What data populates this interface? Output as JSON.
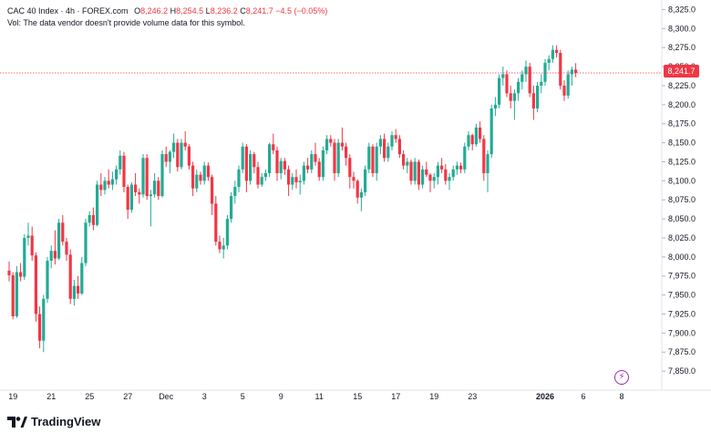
{
  "legend": {
    "title": "CAC 40 Index · 4h · FOREX.com",
    "o_label": "O",
    "o_value": "8,246.2",
    "h_label": "H",
    "h_value": "8,254.5",
    "l_label": "L",
    "l_value": "8,236.2",
    "c_label": "C",
    "c_value": "8,241.7",
    "change": "−4.5 (−0.05%)",
    "vol_note": "Vol: The data vendor doesn't provide volume data for this symbol."
  },
  "price_tag": "8,241.7",
  "brand": "TradingView",
  "colors": {
    "up": "#22ab94",
    "down": "#f23645",
    "accent": "#9c27b0"
  },
  "chart_data": {
    "type": "candlestick",
    "title": "CAC 40 Index · 4h · FOREX.com",
    "ylim": [
      7825,
      8337.5
    ],
    "y_ticks": [
      "8,325.0",
      "8,300.0",
      "8,275.0",
      "8,250.0",
      "8,225.0",
      "8,200.0",
      "8,175.0",
      "8,150.0",
      "8,125.0",
      "8,100.0",
      "8,075.0",
      "8,050.0",
      "8,025.0",
      "8,000.0",
      "7,975.0",
      "7,950.0",
      "7,925.0",
      "7,900.0",
      "7,875.0",
      "7,850.0"
    ],
    "y_tick_values": [
      8325,
      8300,
      8275,
      8250,
      8225,
      8200,
      8175,
      8150,
      8125,
      8100,
      8075,
      8050,
      8025,
      8000,
      7975,
      7950,
      7925,
      7900,
      7875,
      7850
    ],
    "x_labels": [
      {
        "label": "19",
        "index": 1,
        "bold": false
      },
      {
        "label": "21",
        "index": 11,
        "bold": false
      },
      {
        "label": "25",
        "index": 21,
        "bold": false
      },
      {
        "label": "27",
        "index": 31,
        "bold": false
      },
      {
        "label": "Dec",
        "index": 41,
        "bold": false
      },
      {
        "label": "3",
        "index": 51,
        "bold": false
      },
      {
        "label": "5",
        "index": 61,
        "bold": false
      },
      {
        "label": "9",
        "index": 71,
        "bold": false
      },
      {
        "label": "11",
        "index": 81,
        "bold": false
      },
      {
        "label": "15",
        "index": 91,
        "bold": false
      },
      {
        "label": "17",
        "index": 101,
        "bold": false
      },
      {
        "label": "19",
        "index": 111,
        "bold": false
      },
      {
        "label": "23",
        "index": 121,
        "bold": false
      },
      {
        "label": "2026",
        "index": 140,
        "bold": true
      },
      {
        "label": "6",
        "index": 150,
        "bold": false
      },
      {
        "label": "8",
        "index": 160,
        "bold": false
      }
    ],
    "last_price": 8241.7,
    "candles": [
      [
        7982,
        7994,
        7968,
        7976
      ],
      [
        7976,
        7980,
        7918,
        7922
      ],
      [
        7922,
        7988,
        7920,
        7980
      ],
      [
        7980,
        7992,
        7968,
        7974
      ],
      [
        7974,
        8030,
        7970,
        8025
      ],
      [
        8025,
        8045,
        8015,
        8028
      ],
      [
        8028,
        8040,
        7995,
        8002
      ],
      [
        8002,
        8006,
        7915,
        7925
      ],
      [
        7925,
        7935,
        7880,
        7890
      ],
      [
        7890,
        7950,
        7875,
        7945
      ],
      [
        7945,
        8000,
        7940,
        7995
      ],
      [
        7995,
        8015,
        7985,
        8008
      ],
      [
        8008,
        8035,
        7990,
        7998
      ],
      [
        7998,
        8050,
        7996,
        8045
      ],
      [
        8045,
        8055,
        8015,
        8020
      ],
      [
        8020,
        8025,
        7995,
        8003
      ],
      [
        8003,
        8010,
        7938,
        7945
      ],
      [
        7945,
        7970,
        7936,
        7962
      ],
      [
        7962,
        7975,
        7945,
        7952
      ],
      [
        7952,
        8000,
        7950,
        7992
      ],
      [
        7992,
        8050,
        7988,
        8045
      ],
      [
        8045,
        8060,
        8040,
        8055
      ],
      [
        8055,
        8065,
        8035,
        8042
      ],
      [
        8042,
        8100,
        8040,
        8095
      ],
      [
        8095,
        8110,
        8080,
        8088
      ],
      [
        8088,
        8105,
        8082,
        8100
      ],
      [
        8100,
        8115,
        8090,
        8095
      ],
      [
        8095,
        8112,
        8088,
        8102
      ],
      [
        8102,
        8120,
        8095,
        8115
      ],
      [
        8115,
        8140,
        8108,
        8133
      ],
      [
        8133,
        8138,
        8085,
        8092
      ],
      [
        8092,
        8095,
        8050,
        8062
      ],
      [
        8062,
        8098,
        8058,
        8095
      ],
      [
        8095,
        8110,
        8080,
        8085
      ],
      [
        8085,
        8090,
        8070,
        8082
      ],
      [
        8082,
        8135,
        8078,
        8130
      ],
      [
        8130,
        8135,
        8075,
        8080
      ],
      [
        8080,
        8088,
        8040,
        8082
      ],
      [
        8082,
        8110,
        8078,
        8100
      ],
      [
        8100,
        8105,
        8075,
        8080
      ],
      [
        8080,
        8140,
        8078,
        8135
      ],
      [
        8135,
        8145,
        8118,
        8125
      ],
      [
        8125,
        8140,
        8110,
        8138
      ],
      [
        8138,
        8162,
        8130,
        8150
      ],
      [
        8150,
        8155,
        8112,
        8118
      ],
      [
        8118,
        8155,
        8115,
        8150
      ],
      [
        8150,
        8165,
        8140,
        8145
      ],
      [
        8145,
        8148,
        8115,
        8120
      ],
      [
        8120,
        8125,
        8080,
        8090
      ],
      [
        8090,
        8115,
        8085,
        8108
      ],
      [
        8108,
        8112,
        8095,
        8100
      ],
      [
        8100,
        8125,
        8095,
        8120
      ],
      [
        8120,
        8124,
        8100,
        8105
      ],
      [
        8105,
        8108,
        8055,
        8070
      ],
      [
        8070,
        8080,
        8015,
        8020
      ],
      [
        8020,
        8028,
        8005,
        8010
      ],
      [
        8010,
        8025,
        7998,
        8015
      ],
      [
        8015,
        8055,
        8010,
        8050
      ],
      [
        8050,
        8085,
        8045,
        8080
      ],
      [
        8080,
        8100,
        8070,
        8092
      ],
      [
        8092,
        8120,
        8085,
        8115
      ],
      [
        8115,
        8150,
        8110,
        8145
      ],
      [
        8145,
        8148,
        8085,
        8100
      ],
      [
        8100,
        8140,
        8095,
        8135
      ],
      [
        8135,
        8138,
        8110,
        8118
      ],
      [
        8118,
        8125,
        8090,
        8095
      ],
      [
        8095,
        8110,
        8092,
        8105
      ],
      [
        8105,
        8115,
        8100,
        8110
      ],
      [
        8110,
        8150,
        8105,
        8148
      ],
      [
        8148,
        8162,
        8135,
        8140
      ],
      [
        8140,
        8145,
        8100,
        8110
      ],
      [
        8110,
        8130,
        8102,
        8126
      ],
      [
        8126,
        8130,
        8108,
        8115
      ],
      [
        8115,
        8120,
        8080,
        8095
      ],
      [
        8095,
        8110,
        8088,
        8105
      ],
      [
        8105,
        8115,
        8090,
        8098
      ],
      [
        8098,
        8108,
        8082,
        8100
      ],
      [
        8100,
        8125,
        8095,
        8120
      ],
      [
        8120,
        8130,
        8110,
        8115
      ],
      [
        8115,
        8140,
        8110,
        8135
      ],
      [
        8135,
        8150,
        8120,
        8125
      ],
      [
        8125,
        8130,
        8100,
        8105
      ],
      [
        8105,
        8145,
        8100,
        8140
      ],
      [
        8140,
        8160,
        8135,
        8155
      ],
      [
        8155,
        8160,
        8145,
        8150
      ],
      [
        8150,
        8155,
        8100,
        8110
      ],
      [
        8110,
        8155,
        8105,
        8150
      ],
      [
        8150,
        8170,
        8140,
        8145
      ],
      [
        8145,
        8150,
        8120,
        8130
      ],
      [
        8130,
        8135,
        8090,
        8105
      ],
      [
        8105,
        8112,
        8090,
        8100
      ],
      [
        8100,
        8102,
        8070,
        8078
      ],
      [
        8078,
        8090,
        8060,
        8085
      ],
      [
        8085,
        8120,
        8080,
        8115
      ],
      [
        8115,
        8150,
        8110,
        8145
      ],
      [
        8145,
        8148,
        8105,
        8110
      ],
      [
        8110,
        8150,
        8100,
        8145
      ],
      [
        8145,
        8160,
        8135,
        8155
      ],
      [
        8155,
        8162,
        8125,
        8130
      ],
      [
        8130,
        8150,
        8125,
        8145
      ],
      [
        8145,
        8165,
        8140,
        8160
      ],
      [
        8160,
        8168,
        8150,
        8155
      ],
      [
        8155,
        8160,
        8130,
        8135
      ],
      [
        8135,
        8140,
        8115,
        8120
      ],
      [
        8120,
        8130,
        8110,
        8125
      ],
      [
        8125,
        8128,
        8095,
        8100
      ],
      [
        8100,
        8130,
        8095,
        8125
      ],
      [
        8125,
        8128,
        8088,
        8095
      ],
      [
        8095,
        8120,
        8090,
        8115
      ],
      [
        8115,
        8125,
        8105,
        8108
      ],
      [
        8108,
        8110,
        8085,
        8100
      ],
      [
        8100,
        8110,
        8090,
        8105
      ],
      [
        8105,
        8125,
        8095,
        8120
      ],
      [
        8120,
        8130,
        8110,
        8115
      ],
      [
        8115,
        8122,
        8095,
        8100
      ],
      [
        8100,
        8110,
        8088,
        8105
      ],
      [
        8105,
        8120,
        8100,
        8115
      ],
      [
        8115,
        8125,
        8108,
        8120
      ],
      [
        8120,
        8124,
        8110,
        8115
      ],
      [
        8115,
        8150,
        8110,
        8145
      ],
      [
        8145,
        8165,
        8140,
        8160
      ],
      [
        8160,
        8162,
        8140,
        8148
      ],
      [
        8148,
        8175,
        8145,
        8170
      ],
      [
        8170,
        8178,
        8150,
        8155
      ],
      [
        8155,
        8160,
        8100,
        8110
      ],
      [
        8110,
        8140,
        8085,
        8135
      ],
      [
        8135,
        8200,
        8130,
        8195
      ],
      [
        8195,
        8210,
        8185,
        8200
      ],
      [
        8200,
        8240,
        8195,
        8235
      ],
      [
        8235,
        8250,
        8225,
        8240
      ],
      [
        8240,
        8245,
        8210,
        8215
      ],
      [
        8215,
        8225,
        8195,
        8205
      ],
      [
        8205,
        8220,
        8180,
        8215
      ],
      [
        8215,
        8235,
        8205,
        8230
      ],
      [
        8230,
        8245,
        8220,
        8240
      ],
      [
        8240,
        8258,
        8230,
        8250
      ],
      [
        8250,
        8255,
        8210,
        8215
      ],
      [
        8215,
        8225,
        8180,
        8195
      ],
      [
        8195,
        8230,
        8190,
        8225
      ],
      [
        8225,
        8240,
        8215,
        8230
      ],
      [
        8230,
        8260,
        8225,
        8255
      ],
      [
        8255,
        8265,
        8245,
        8260
      ],
      [
        8260,
        8278,
        8255,
        8272
      ],
      [
        8272,
        8278,
        8262,
        8268
      ],
      [
        8268,
        8272,
        8220,
        8225
      ],
      [
        8225,
        8232,
        8205,
        8212
      ],
      [
        8212,
        8245,
        8208,
        8240
      ],
      [
        8240,
        8250,
        8225,
        8246
      ],
      [
        8246,
        8254.5,
        8236.2,
        8241.7
      ]
    ]
  }
}
